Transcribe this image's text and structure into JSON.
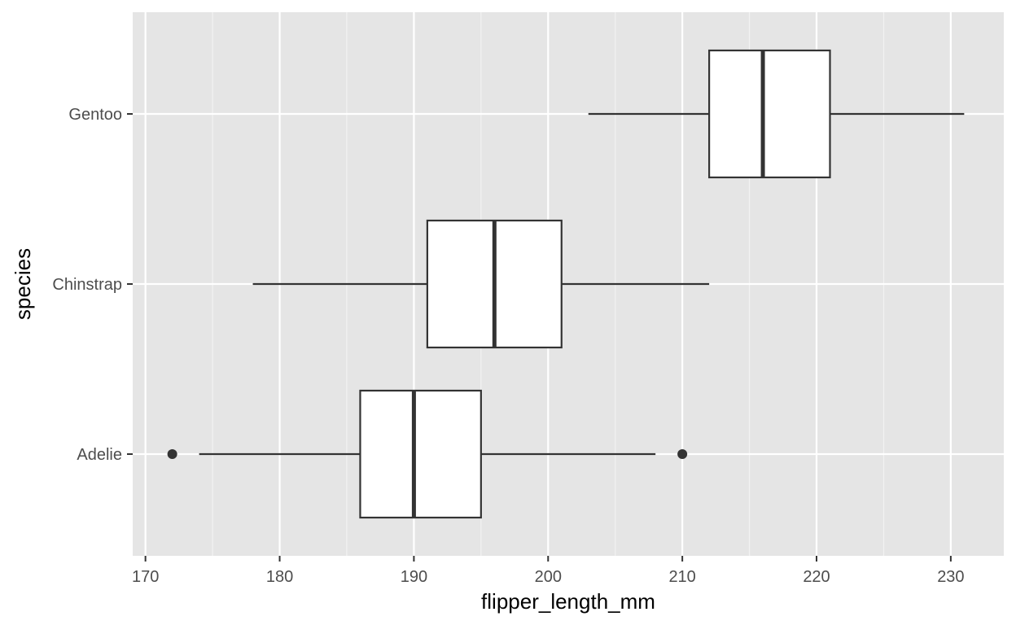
{
  "chart_data": {
    "type": "boxplot",
    "orientation": "horizontal",
    "title": "",
    "xlabel": "flipper_length_mm",
    "ylabel": "species",
    "xlim": [
      169.05,
      233.95
    ],
    "x_ticks": [
      170,
      180,
      190,
      200,
      210,
      220,
      230
    ],
    "x_tick_labels": [
      "170",
      "180",
      "190",
      "200",
      "210",
      "220",
      "230"
    ],
    "grid": true,
    "legend": "none",
    "categories": [
      "Gentoo",
      "Chinstrap",
      "Adelie"
    ],
    "series": [
      {
        "category": "Gentoo",
        "whisker_low": 203,
        "q1": 212,
        "median": 216,
        "q3": 221,
        "whisker_high": 231,
        "outliers": []
      },
      {
        "category": "Chinstrap",
        "whisker_low": 178,
        "q1": 191,
        "median": 196,
        "q3": 201,
        "whisker_high": 212,
        "outliers": []
      },
      {
        "category": "Adelie",
        "whisker_low": 174,
        "q1": 186,
        "median": 190,
        "q3": 195,
        "whisker_high": 208,
        "outliers": [
          172,
          210
        ]
      }
    ],
    "colors": {
      "panel_background": "#e5e5e5",
      "grid_major": "#ffffff",
      "grid_minor": "#f2f2f2",
      "box_fill": "#ffffff",
      "box_line": "#333333",
      "tick_text": "#4d4d4d",
      "axis_title": "#000000"
    }
  }
}
